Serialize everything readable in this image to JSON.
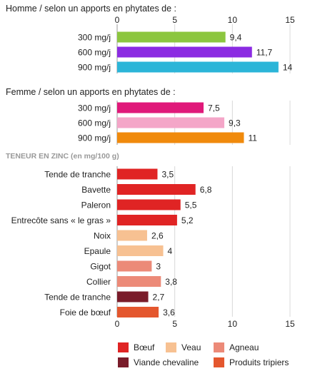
{
  "chart_data": {
    "type": "bar",
    "orientation": "horizontal",
    "xlim": [
      0,
      15
    ],
    "x_ticks": [
      "0",
      "5",
      "10",
      "15"
    ],
    "grid": true,
    "sections": [
      {
        "title": "Homme / selon un apports en phytates de :",
        "categories": [
          "300 mg/j",
          "600 mg/j",
          "900 mg/j"
        ],
        "values": [
          9.4,
          11.7,
          14
        ],
        "value_labels": [
          "9,4",
          "11,7",
          "14"
        ],
        "colors": [
          "#8cc63f",
          "#8b2be2",
          "#2bb5d8"
        ]
      },
      {
        "title": "Femme / selon un apports en phytates de :",
        "categories": [
          "300 mg/j",
          "600 mg/j",
          "900 mg/j"
        ],
        "values": [
          7.5,
          9.3,
          11
        ],
        "value_labels": [
          "7,5",
          "9,3",
          "11"
        ],
        "colors": [
          "#e0197a",
          "#f4a6c8",
          "#f08a0c"
        ]
      },
      {
        "title": "TENEUR EN ZINC (en mg/100 g)",
        "categories": [
          "Tende de tranche",
          "Bavette",
          "Paleron",
          "Entrecôte sans « le gras »",
          "Noix",
          "Epaule",
          "Gigot",
          "Collier",
          "Tende de tranche",
          "Foie de bœuf"
        ],
        "values": [
          3.5,
          6.8,
          5.5,
          5.2,
          2.6,
          4,
          3,
          3.8,
          2.7,
          3.6
        ],
        "value_labels": [
          "3,5",
          "6,8",
          "5,5",
          "5,2",
          "2,6",
          "4",
          "3",
          "3,8",
          "2,7",
          "3,6"
        ],
        "groups": [
          "Bœuf",
          "Bœuf",
          "Bœuf",
          "Bœuf",
          "Veau",
          "Veau",
          "Agneau",
          "Agneau",
          "Viande chevaline",
          "Produits tripiers"
        ]
      }
    ],
    "legend": {
      "placement": "bottom",
      "items": [
        {
          "label": "Bœuf",
          "color": "#e02424"
        },
        {
          "label": "Veau",
          "color": "#f7c192"
        },
        {
          "label": "Agneau",
          "color": "#ec8a78"
        },
        {
          "label": "Viande chevaline",
          "color": "#7a1c2a"
        },
        {
          "label": "Produits tripiers",
          "color": "#e4572e"
        }
      ]
    }
  }
}
